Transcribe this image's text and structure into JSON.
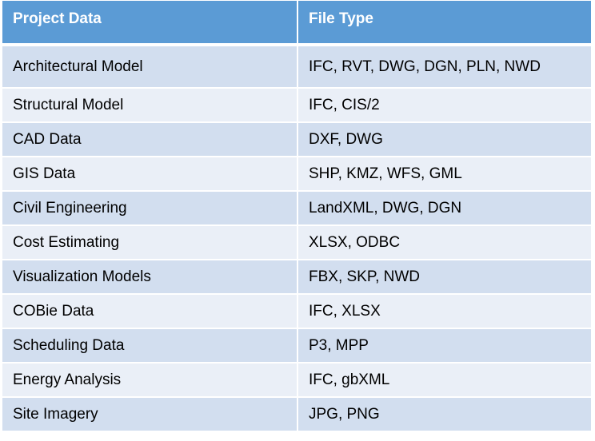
{
  "table": {
    "headers": [
      "Project Data",
      "File Type"
    ],
    "rows": [
      [
        "Architectural Model",
        "IFC, RVT, DWG, DGN, PLN, NWD"
      ],
      [
        "Structural Model",
        "IFC, CIS/2"
      ],
      [
        "CAD Data",
        "DXF, DWG"
      ],
      [
        "GIS Data",
        "SHP, KMZ, WFS, GML"
      ],
      [
        "Civil Engineering",
        "LandXML, DWG, DGN"
      ],
      [
        "Cost Estimating",
        "XLSX, ODBC"
      ],
      [
        "Visualization Models",
        "FBX, SKP, NWD"
      ],
      [
        "COBie Data",
        "IFC, XLSX"
      ],
      [
        "Scheduling Data",
        "P3, MPP"
      ],
      [
        "Energy Analysis",
        "IFC, gbXML"
      ],
      [
        "Site Imagery",
        "JPG, PNG"
      ]
    ]
  },
  "colors": {
    "header_bg": "#5b9bd5",
    "row_dark": "#d2deef",
    "row_light": "#eaeff7"
  }
}
